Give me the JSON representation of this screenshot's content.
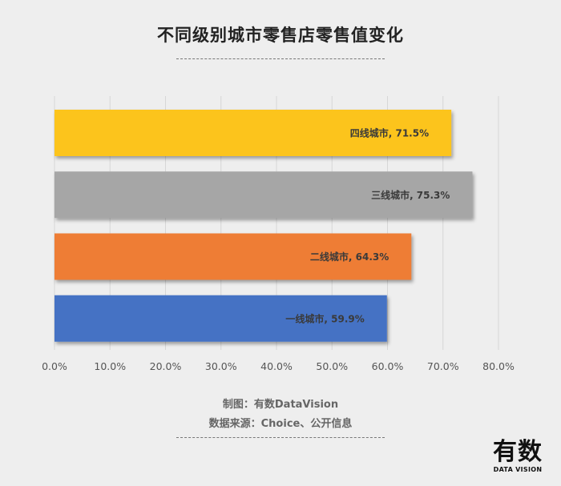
{
  "title": "不同级别城市零售店零售值变化",
  "credits": {
    "line1": "制图：有数DataVision",
    "line2": "数据来源：Choice、公开信息"
  },
  "logo": {
    "main": "有数",
    "sub": "DATA VISION"
  },
  "chart_data": {
    "type": "bar",
    "orientation": "horizontal",
    "categories": [
      "四线城市",
      "三线城市",
      "二线城市",
      "一线城市"
    ],
    "values": [
      71.5,
      75.3,
      64.3,
      59.9
    ],
    "labels": [
      "四线城市, 71.5%",
      "三线城市, 75.3%",
      "二线城市, 64.3%",
      "一线城市, 59.9%"
    ],
    "colors": [
      "#fcc41a",
      "#a6a6a6",
      "#ee7d35",
      "#4472c4"
    ],
    "xlim": [
      0,
      80
    ],
    "xticks": [
      0,
      10,
      20,
      30,
      40,
      50,
      60,
      70,
      80
    ],
    "xtick_labels": [
      "0.0%",
      "10.0%",
      "20.0%",
      "30.0%",
      "40.0%",
      "50.0%",
      "60.0%",
      "70.0%",
      "80.0%"
    ],
    "grid": true,
    "legend": "none"
  }
}
